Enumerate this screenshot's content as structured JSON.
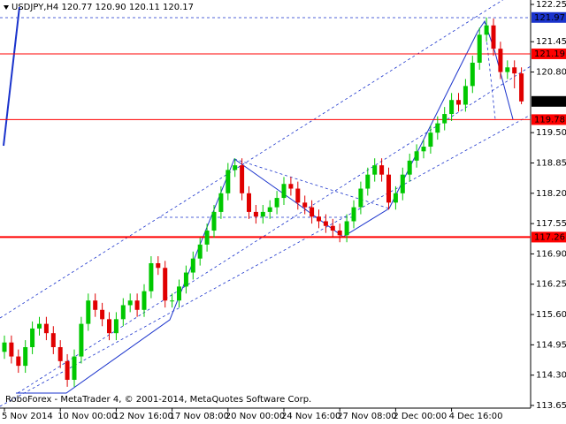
{
  "chart_data": {
    "type": "candlestick",
    "header": "USDJPY,H4  120.77 120.90 120.11 120.17",
    "footer": "RoboForex - MetaTrader 4, © 2001-2014, MetaQuotes Software Corp.",
    "categories": [
      "5 Nov 2014",
      null,
      null,
      null,
      null,
      null,
      null,
      null,
      "10 Nov 00:00",
      null,
      null,
      null,
      null,
      null,
      null,
      null,
      "12 Nov 16:00",
      null,
      null,
      null,
      null,
      null,
      null,
      null,
      "17 Nov 08:00",
      null,
      null,
      null,
      null,
      null,
      null,
      null,
      "20 Nov 00:00",
      null,
      null,
      null,
      null,
      null,
      null,
      null,
      "24 Nov 16:00",
      null,
      null,
      null,
      null,
      null,
      null,
      null,
      "27 Nov 08:00",
      null,
      null,
      null,
      null,
      null,
      null,
      null,
      "2 Dec 00:00",
      null,
      null,
      null,
      null,
      null,
      null,
      null,
      "4 Dec 16:00",
      null,
      null,
      null,
      null,
      null,
      null,
      null,
      null,
      null,
      null
    ],
    "open": [
      114.8,
      115.0,
      114.7,
      114.5,
      114.9,
      115.3,
      115.4,
      115.2,
      114.9,
      114.6,
      114.2,
      114.7,
      115.4,
      115.9,
      115.7,
      115.5,
      115.2,
      115.5,
      115.8,
      115.9,
      115.7,
      116.1,
      116.7,
      116.6,
      115.9,
      115.9,
      116.2,
      116.5,
      116.8,
      117.1,
      117.4,
      117.8,
      118.2,
      118.7,
      118.8,
      118.2,
      117.8,
      117.7,
      117.8,
      117.9,
      118.1,
      118.4,
      118.3,
      118.0,
      117.9,
      117.7,
      117.6,
      117.5,
      117.4,
      117.3,
      117.6,
      117.9,
      118.3,
      118.6,
      118.8,
      118.6,
      118.0,
      118.2,
      118.6,
      118.9,
      119.1,
      119.2,
      119.5,
      119.7,
      119.9,
      120.2,
      120.1,
      120.5,
      121.0,
      121.6,
      121.8,
      121.3,
      120.8,
      120.9,
      120.77
    ],
    "high": [
      115.15,
      115.15,
      114.85,
      115.05,
      115.45,
      115.55,
      115.55,
      115.35,
      115.05,
      114.75,
      114.85,
      115.55,
      116.05,
      116.05,
      115.85,
      115.65,
      115.65,
      115.95,
      116.05,
      116.05,
      116.25,
      116.85,
      116.85,
      116.75,
      116.05,
      116.35,
      116.65,
      116.95,
      117.25,
      117.55,
      117.95,
      118.35,
      118.85,
      118.95,
      118.95,
      118.35,
      117.95,
      117.95,
      118.05,
      118.25,
      118.55,
      118.55,
      118.45,
      118.15,
      118.05,
      117.85,
      117.75,
      117.65,
      117.55,
      117.75,
      118.05,
      118.45,
      118.75,
      118.95,
      118.95,
      118.75,
      118.35,
      118.75,
      119.05,
      119.25,
      119.35,
      119.65,
      119.85,
      120.05,
      120.35,
      120.35,
      120.65,
      121.15,
      121.75,
      121.97,
      121.95,
      121.45,
      121.05,
      121.05,
      120.9
    ],
    "low": [
      114.65,
      114.55,
      114.35,
      114.35,
      114.75,
      115.15,
      115.05,
      114.75,
      114.45,
      114.05,
      114.05,
      114.55,
      115.25,
      115.55,
      115.35,
      115.05,
      115.05,
      115.35,
      115.65,
      115.55,
      115.55,
      115.95,
      116.45,
      115.75,
      115.75,
      115.75,
      116.05,
      116.35,
      116.65,
      116.95,
      117.25,
      117.65,
      118.05,
      118.55,
      118.05,
      117.65,
      117.55,
      117.55,
      117.65,
      117.75,
      117.95,
      118.15,
      117.85,
      117.75,
      117.55,
      117.45,
      117.35,
      117.25,
      117.15,
      117.15,
      117.45,
      117.75,
      118.15,
      118.45,
      118.45,
      117.85,
      117.85,
      118.05,
      118.45,
      118.75,
      118.95,
      119.05,
      119.35,
      119.55,
      119.75,
      119.95,
      119.95,
      120.35,
      120.85,
      121.45,
      121.15,
      120.65,
      120.65,
      120.45,
      120.11
    ],
    "close": [
      115.0,
      114.7,
      114.5,
      114.9,
      115.3,
      115.4,
      115.2,
      114.9,
      114.6,
      114.2,
      114.7,
      115.4,
      115.9,
      115.7,
      115.5,
      115.2,
      115.5,
      115.8,
      115.9,
      115.7,
      116.1,
      116.7,
      116.6,
      115.9,
      115.9,
      116.2,
      116.5,
      116.8,
      117.1,
      117.4,
      117.8,
      118.2,
      118.7,
      118.8,
      118.2,
      117.8,
      117.7,
      117.8,
      117.9,
      118.1,
      118.4,
      118.3,
      118.0,
      117.9,
      117.7,
      117.6,
      117.5,
      117.4,
      117.3,
      117.6,
      117.9,
      118.3,
      118.6,
      118.8,
      118.6,
      118.0,
      118.2,
      118.6,
      118.9,
      119.1,
      119.2,
      119.5,
      119.7,
      119.9,
      120.2,
      120.1,
      120.5,
      121.0,
      121.6,
      121.8,
      121.3,
      120.8,
      120.9,
      120.77,
      120.17
    ],
    "up_color": "#00c800",
    "down_color": "#e00000",
    "ylim": [
      113.65,
      122.25
    ],
    "yticks": [
      113.65,
      {
        "value": 114.3,
        "label": "114.30"
      },
      114.95,
      {
        "value": 115.6,
        "label": "115.60"
      },
      116.25,
      {
        "value": 116.9,
        "label": "116.90"
      },
      117.55,
      {
        "value": 118.2,
        "label": "118.20"
      },
      118.85,
      {
        "value": 119.5,
        "label": "119.50"
      },
      {
        "value": 120.8,
        "label": "120.80"
      },
      121.45,
      122.25
    ],
    "levels": [
      {
        "value": 121.19,
        "color": "#ff0000"
      },
      {
        "value": 119.78,
        "color": "#ff0000"
      },
      {
        "value": 117.26,
        "color": "#ff0000"
      }
    ],
    "price_boxes": [
      {
        "value": 121.97,
        "color": "#1a33cc"
      },
      {
        "value": 120.17,
        "color": "#000000"
      }
    ]
  }
}
